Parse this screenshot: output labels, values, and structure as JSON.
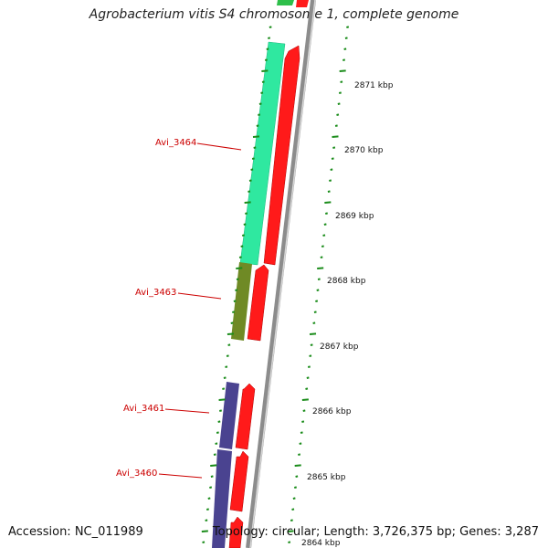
{
  "title": "Agrobacterium vitis S4 chromosome 1, complete genome",
  "accession": "Accession: NC_011989",
  "summary": "Topology: circular; Length: 3,726,375 bp; Genes: 3,287",
  "colors": {
    "forward_cds": "#ff1a1a",
    "backbone": "#8c8c8c",
    "tick": "#1a8c1a",
    "label": "#cc0000",
    "gene_3464": "#2fe8a0",
    "gene_3463": "#6f8a25",
    "gene_3461": "#4a4390",
    "gene_3460": "#4a4390"
  },
  "scale_labels": [
    "2871 kbp",
    "2870 kbp",
    "2869 kbp",
    "2868 kbp",
    "2867 kbp",
    "2866 kbp",
    "2865 kbp",
    "2864 kbp"
  ],
  "gene_labels": [
    "Avi_3464",
    "Avi_3463",
    "Avi_3461",
    "Avi_3460"
  ]
}
